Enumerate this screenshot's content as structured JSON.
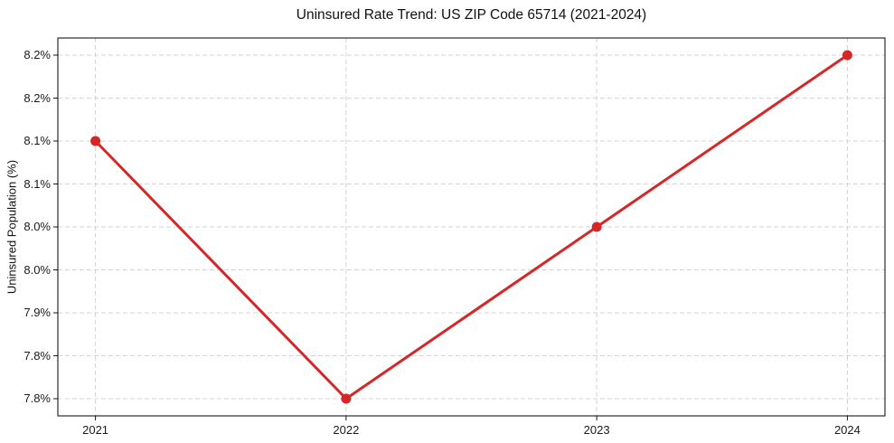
{
  "chart_data": {
    "type": "line",
    "title": "Uninsured Rate Trend: US ZIP Code 65714 (2021-2024)",
    "xlabel": "",
    "ylabel": "Uninsured Population (%)",
    "x": [
      2021,
      2022,
      2023,
      2024
    ],
    "series": [
      {
        "name": "Uninsured Population (%)",
        "values": [
          8.1,
          7.8,
          8.0,
          8.2
        ]
      }
    ],
    "xlim": [
      2020.85,
      2024.15
    ],
    "ylim": [
      7.78,
      8.22
    ],
    "xticks": {
      "values": [
        2021,
        2022,
        2023,
        2024
      ],
      "labels": [
        "2021",
        "2022",
        "2023",
        "2024"
      ]
    },
    "yticks": {
      "values": [
        7.8,
        7.85,
        7.9,
        7.95,
        8.0,
        8.05,
        8.1,
        8.15,
        8.2
      ],
      "labels": [
        "7.8%",
        "7.8%",
        "7.9%",
        "8.0%",
        "8.0%",
        "8.1%",
        "8.1%",
        "8.2%",
        "8.2%"
      ]
    },
    "grid": true,
    "legend": false,
    "marker": "circle",
    "colors": {
      "line": "#d62728",
      "grid": "#d4d4d4",
      "axis": "#000000",
      "text": "#1a1a1a",
      "background": "#ffffff"
    }
  }
}
